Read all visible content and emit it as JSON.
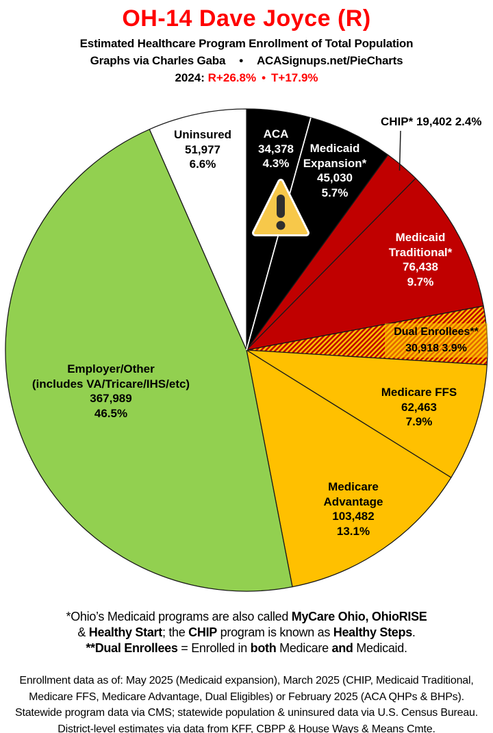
{
  "header": {
    "title": "OH-14 Dave Joyce (R)",
    "subtitle": "Estimated Healthcare Program Enrollment of Total Population",
    "credit_left": "Graphs via Charles Gaba",
    "credit_sep": "•",
    "credit_right": "ACASignups.net/PieCharts",
    "election_prefix": "2024:",
    "election_r": "R+26.8%",
    "election_sep": "•",
    "election_t": "T+17.9%"
  },
  "chart_data": {
    "type": "pie",
    "title": "OH-14 Dave Joyce (R)",
    "start_angle_deg": 0,
    "direction": "clockwise",
    "slices": [
      {
        "label": "ACA",
        "value": 34378,
        "value_label": "34,378",
        "pct": 4.3,
        "pct_label": "4.3%",
        "color": "#000000",
        "text_color": "#FFFFFF"
      },
      {
        "label": "Medicaid Expansion*",
        "value": 45030,
        "value_label": "45,030",
        "pct": 5.7,
        "pct_label": "5.7%",
        "color": "#000000",
        "text_color": "#FFFFFF"
      },
      {
        "label": "CHIP*",
        "value": 19402,
        "value_label": "19,402",
        "pct": 2.4,
        "pct_label": "2.4%",
        "color": "#C00000",
        "text_color": "#000000",
        "label_outside": true
      },
      {
        "label": "Medicaid Traditional*",
        "value": 76438,
        "value_label": "76,438",
        "pct": 9.7,
        "pct_label": "9.7%",
        "color": "#C00000",
        "text_color": "#FFFFFF"
      },
      {
        "label": "Dual Enrollees**",
        "value": 30918,
        "value_label": "30,918",
        "pct": 3.9,
        "pct_label": "3.9%",
        "color": "pattern:red-gold-stripes",
        "text_color": "#000000"
      },
      {
        "label": "Medicare FFS",
        "value": 62463,
        "value_label": "62,463",
        "pct": 7.9,
        "pct_label": "7.9%",
        "color": "#FFC000",
        "text_color": "#000000"
      },
      {
        "label": "Medicare Advantage",
        "value": 103482,
        "value_label": "103,482",
        "pct": 13.1,
        "pct_label": "13.1%",
        "color": "#FFC000",
        "text_color": "#000000"
      },
      {
        "label": "Employer/Other",
        "sublabel": "(includes VA/Tricare/IHS/etc)",
        "value": 367989,
        "value_label": "367,989",
        "pct": 46.5,
        "pct_label": "46.5%",
        "color": "#92D050",
        "text_color": "#000000"
      },
      {
        "label": "Uninsured",
        "value": 51977,
        "value_label": "51,977",
        "pct": 6.6,
        "pct_label": "6.6%",
        "color": "#FFFFFF",
        "text_color": "#000000"
      }
    ],
    "white_divider_after_slice_index": 0,
    "legend_position": "labels-on-slices"
  },
  "colors": {
    "title_red": "#FF0000",
    "pie_black": "#000000",
    "pie_red": "#C00000",
    "pie_gold": "#FFC000",
    "pie_green": "#92D050",
    "pie_white": "#FFFFFF",
    "slice_outline": "#1a1a1a",
    "warning_gold": "#F7C84A",
    "warning_glyph": "#2f2f2f"
  },
  "footnotes": {
    "line1": [
      {
        "t": "*Ohio’s Medicaid programs are also called "
      },
      {
        "t": "MyCare Ohio, OhioRISE",
        "b": 1
      }
    ],
    "line2": [
      {
        "t": "& "
      },
      {
        "t": "Healthy Start",
        "b": 1
      },
      {
        "t": "; the "
      },
      {
        "t": "CHIP",
        "b": 1
      },
      {
        "t": " program is known as "
      },
      {
        "t": "Healthy Steps",
        "b": 1
      },
      {
        "t": "."
      }
    ],
    "line3": [
      {
        "t": "**Dual Enrollees",
        "b": 1
      },
      {
        "t": " = Enrolled in "
      },
      {
        "t": "both",
        "b": 1
      },
      {
        "t": " Medicare "
      },
      {
        "t": "and",
        "b": 1
      },
      {
        "t": " Medicaid."
      }
    ]
  },
  "sources": {
    "line1": "Enrollment data as of: May 2025 (Medicaid expansion), March 2025 (CHIP, Medicaid Traditional,",
    "line2": "Medicare FFS, Medicare Advantage, Dual Eligibles) or February 2025 (ACA QHPs & BHPs).",
    "line3": "Statewide program data via CMS; statewide population & uninsured data via U.S. Census Bureau.",
    "line4": "District-level estimates via data from KFF, CBPP & House Ways & Means Cmte."
  }
}
